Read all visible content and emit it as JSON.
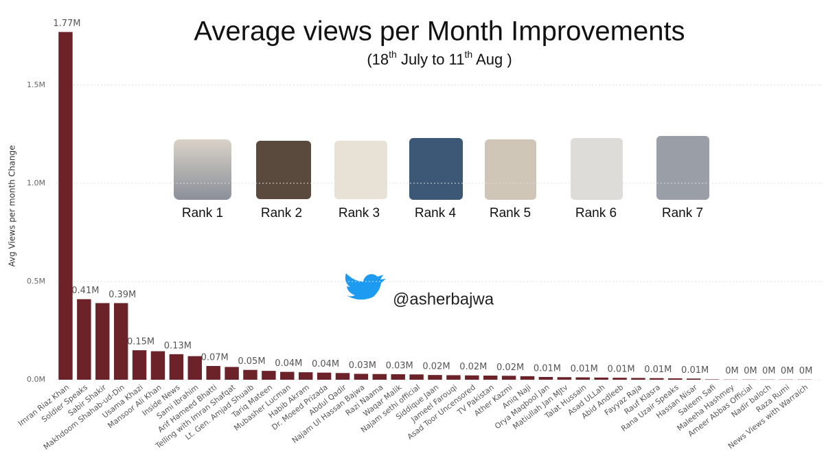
{
  "chart_data": {
    "type": "bar",
    "title": "Average views per Month Improvements",
    "subtitle_parts": [
      "(18",
      "th",
      " July to 11",
      "th",
      " Aug )"
    ],
    "y_label": "Avg Views per month Change",
    "color": "#6b2329",
    "grid": true,
    "ylim": [
      0,
      1.8
    ],
    "yticks": [
      {
        "value": 0,
        "label": "0.0M"
      },
      {
        "value": 0.5,
        "label": "0.5M"
      },
      {
        "value": 1.0,
        "label": "1.0M"
      },
      {
        "value": 1.5,
        "label": "1.5M"
      }
    ],
    "categories": [
      "Imran Riaz Khan",
      "Soldier Speaks",
      "Sabir Shakir",
      "Makhdoom Shahab-ud-Din",
      "Usama Khazi",
      "Mansoor Ali Khan",
      "Inside News",
      "Sami Ibrahim",
      "Arif Hameed Bhatti",
      "Telling with Imran Shafqat",
      "Lt. Gen. Amjad Shuaib",
      "Tariq Mateen",
      "Mubasher Lucman",
      "Habib Akram",
      "Dr. Moeed Prizada",
      "Abdul Qadir",
      "Najam Ul Hassan Bajwa",
      "Razi Naama",
      "Waqar Malik",
      "Najam sethi official",
      "Siddique Jaan",
      "Jameel Farouqi",
      "Asad Toor Uncensored",
      "TV Pakistan",
      "Ather Kazmi",
      "Aniq Naji",
      "Orya Maqbool Jan",
      "Matiullah Jan MJtv",
      "Talat Hussain",
      "Asad ULLah",
      "Abid Andleeb",
      "Fayyaz Raja",
      "Rauf Klasra",
      "Rana Uzair Speaks",
      "Hassan Nisar",
      "Saleem Safi",
      "Maleeha Hashmey",
      "Ameer Abbas Official",
      "Nadir baloch",
      "Raza Rumi",
      "News Views with Warraich"
    ],
    "values": [
      1.77,
      0.41,
      0.39,
      0.39,
      0.15,
      0.145,
      0.13,
      0.12,
      0.07,
      0.065,
      0.05,
      0.045,
      0.04,
      0.038,
      0.036,
      0.034,
      0.03,
      0.029,
      0.028,
      0.027,
      0.024,
      0.023,
      0.022,
      0.021,
      0.02,
      0.018,
      0.014,
      0.013,
      0.012,
      0.011,
      0.01,
      0.009,
      0.008,
      0.007,
      0.006,
      0.002,
      0.001,
      0.001,
      0.001,
      0.001,
      0.001
    ],
    "value_labels": [
      "1.77M",
      "0.41M",
      null,
      "0.39M",
      "0.15M",
      null,
      "0.13M",
      null,
      "0.07M",
      null,
      "0.05M",
      null,
      "0.04M",
      null,
      "0.04M",
      null,
      "0.03M",
      null,
      "0.03M",
      null,
      "0.02M",
      null,
      "0.02M",
      null,
      "0.02M",
      null,
      "0.01M",
      null,
      "0.01M",
      null,
      "0.01M",
      null,
      "0.01M",
      null,
      "0.01M",
      null,
      "0M",
      "0M",
      "0M",
      "0M",
      "0M"
    ]
  },
  "overlay": {
    "ranks": [
      "Rank 1",
      "Rank 2",
      "Rank 3",
      "Rank 4",
      "Rank 5",
      "Rank 6",
      "Rank 7"
    ],
    "twitter_handle": "@asherbajwa"
  }
}
